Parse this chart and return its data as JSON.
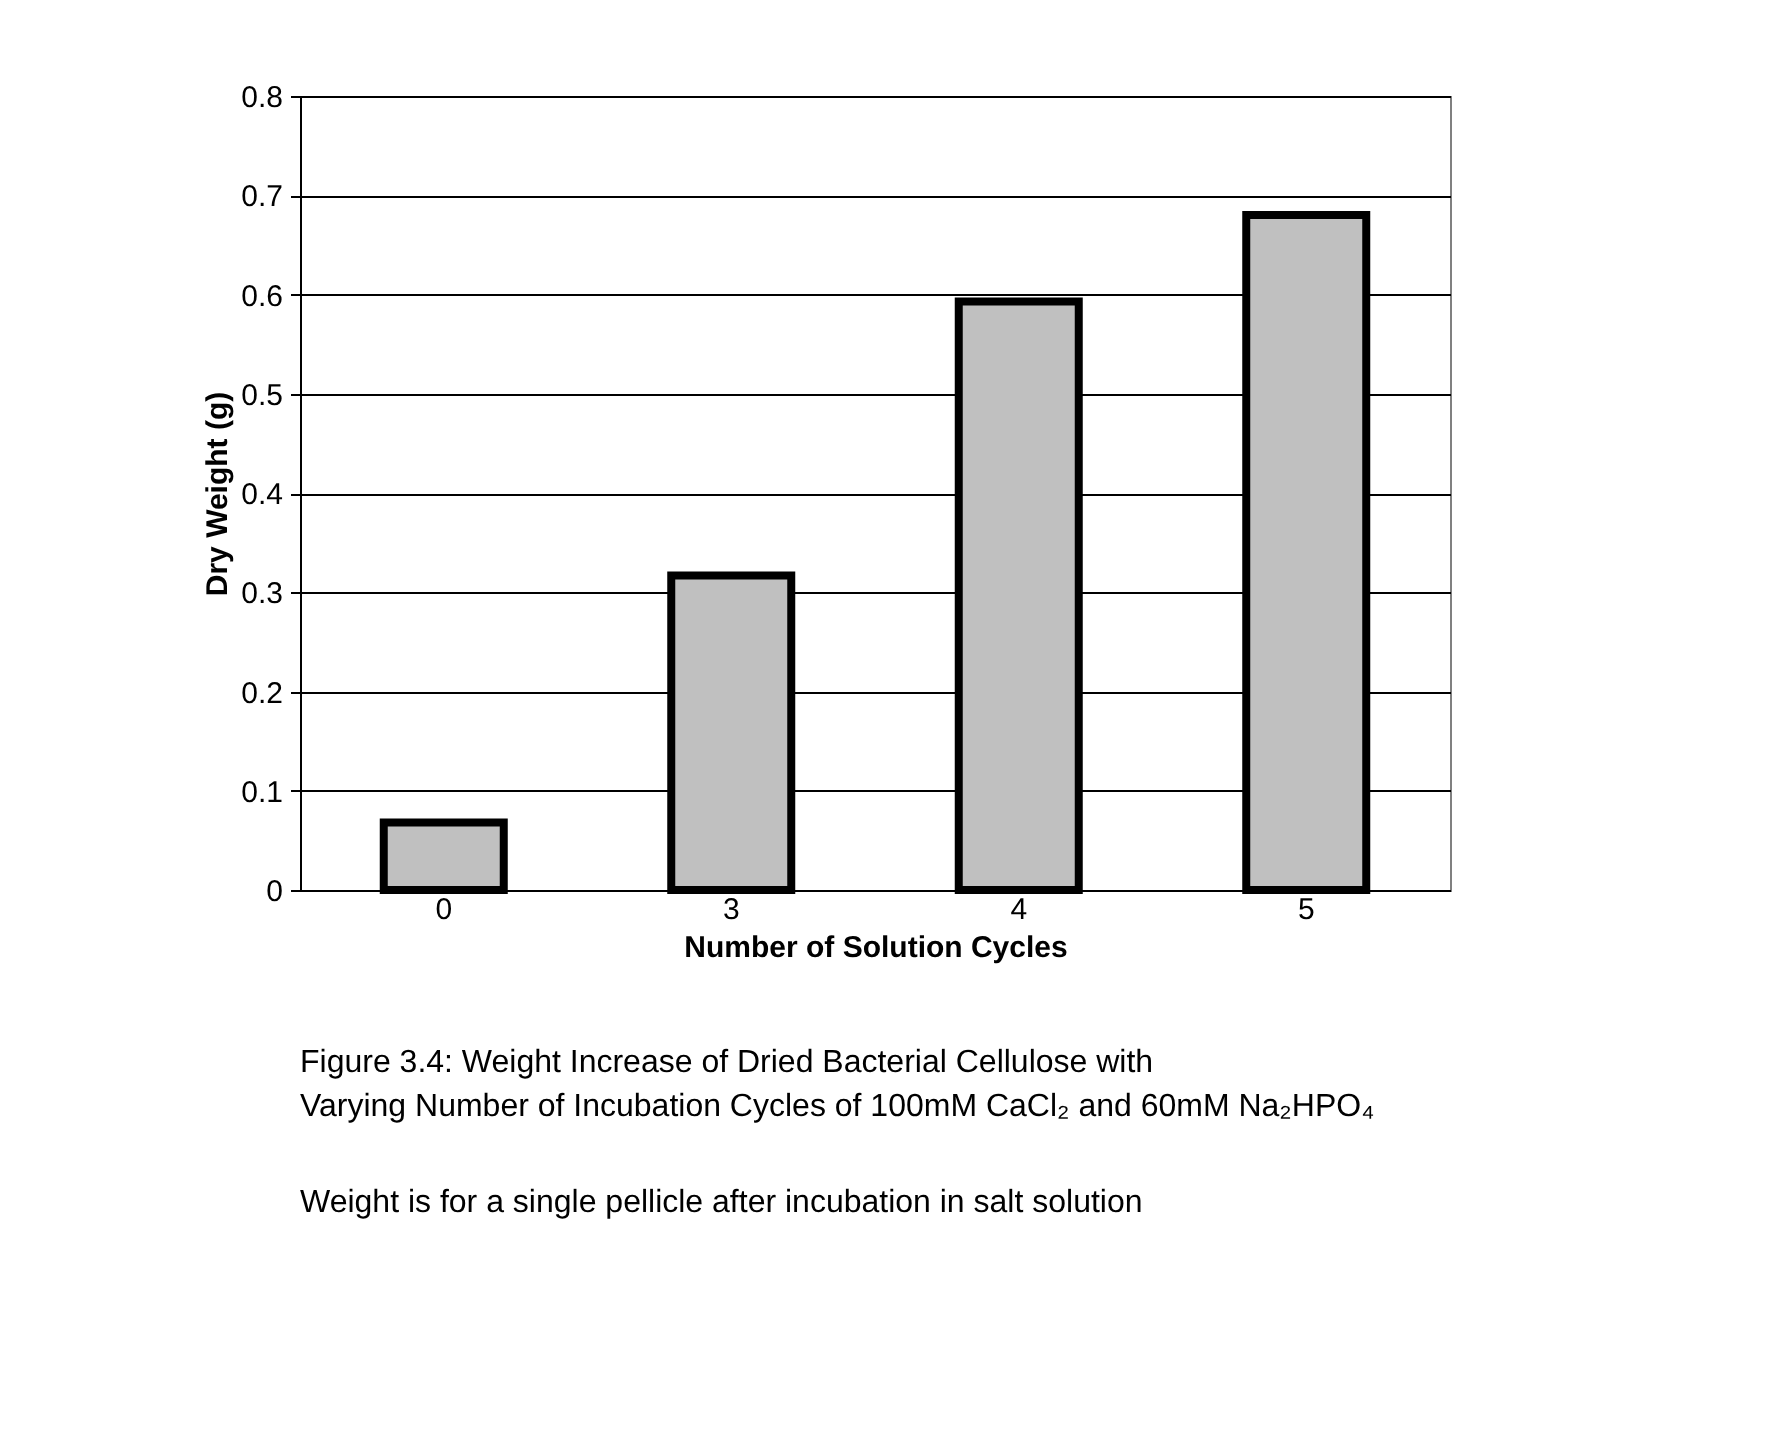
{
  "chart_data": {
    "type": "bar",
    "xlabel": "Number of Solution Cycles",
    "ylabel": "Dry Weight (g)",
    "categories": [
      "0",
      "3",
      "4",
      "5"
    ],
    "values": [
      0.068,
      0.317,
      0.593,
      0.68
    ],
    "color": "#c0c0c0",
    "ylim": [
      0,
      0.8
    ],
    "yticks": [
      0,
      0.1,
      0.2,
      0.3,
      0.4,
      0.5,
      0.6,
      0.7,
      0.8
    ],
    "grid": "y",
    "annotations": [
      "Figure 3.4:  Weight Increase of Dried Bacterial Cellulose with Varying Number of Incubation Cycles of 100mM CaCl₂ and 60mM Na₂HPO₄",
      "Weight is for a single pellicle after incubation in salt solution"
    ]
  }
}
